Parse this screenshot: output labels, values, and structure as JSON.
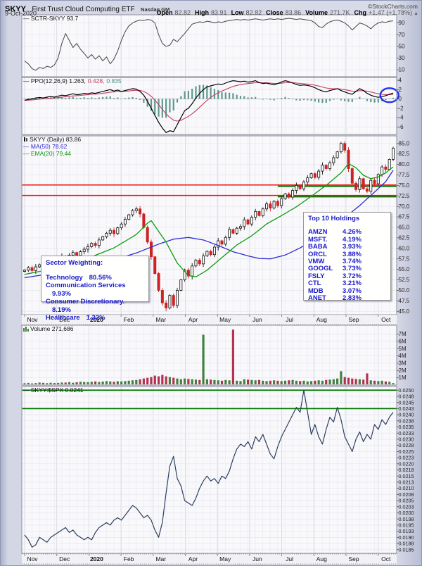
{
  "header": {
    "symbol": "SKYY",
    "name": "First Trust Cloud Computing ETF",
    "exchange": "Nasdaq GM",
    "copyright": "©StockCharts.com",
    "date": "9-Oct-2020",
    "quote": [
      {
        "label": "Open",
        "value": "82.82"
      },
      {
        "label": "High",
        "value": "83.91"
      },
      {
        "label": "Low",
        "value": "82.82"
      },
      {
        "label": "Close",
        "value": "83.86"
      },
      {
        "label": "Volume",
        "value": "271.7K"
      },
      {
        "label": "Chg",
        "value": "+1.47 (+1.78%)"
      }
    ],
    "chg_arrow": "▲"
  },
  "legends": {
    "sctr": "— SCTR-SKYY 93.7",
    "ppo_main": "— PPO(12,26,9) 1.263,",
    "ppo_signal": "0.428,",
    "ppo_hist": "0.835",
    "price_main": "SKYY (Daily) 83.86",
    "ma50": "— MA(50) 78.62",
    "ema20": "— EMA(20) 79.44",
    "volume": "Volume 271,686",
    "ratio": "— SKYY:$SPX 0.0241"
  },
  "annotations": {
    "sector_title": "Sector Weighting:",
    "sectors": [
      {
        "name": "Technology",
        "pct": "80.56%"
      },
      {
        "name": "Communication Services",
        "pct": "9.93%"
      },
      {
        "name": "Consumer Discretionary.",
        "pct": "8.19%"
      },
      {
        "name": "Healthcare",
        "pct": "1.32%"
      }
    ],
    "holdings_title": "Top 10 Holdings",
    "holdings": [
      {
        "ticker": "AMZN",
        "pct": "4.26%"
      },
      {
        "ticker": "MSFT.",
        "pct": "4.19%"
      },
      {
        "ticker": "BABA",
        "pct": "3.93%"
      },
      {
        "ticker": "ORCL",
        "pct": "3.88%"
      },
      {
        "ticker": "VMW",
        "pct": "3.74%"
      },
      {
        "ticker": "GOOGL",
        "pct": "3.73%"
      },
      {
        "ticker": "FSLY",
        "pct": "3.72%"
      },
      {
        "ticker": "CTL",
        "pct": "3.21%"
      },
      {
        "ticker": "MDB",
        "pct": "3.07%"
      },
      {
        "ticker": "ANET",
        "pct": "2.83%"
      }
    ]
  },
  "colors": {
    "candle_up": "#111111",
    "candle_down": "#cc2222",
    "ma50": "#2b2bd4",
    "ema20": "#0d9a0d",
    "ppo_line": "#000000",
    "ppo_signal": "#c23b5a",
    "ppo_hist": "#4a8f81",
    "volume_up": "#43803f",
    "volume_down": "#b23350",
    "ratio_line": "#2c3e5c",
    "sctr_line": "#444444",
    "support_red": "#ee1111",
    "support_green": "#007700",
    "annotation_blue": "#1a1acc",
    "circle_blue": "#2233ee"
  },
  "axes": {
    "months": [
      "Nov",
      "Dec",
      "2020",
      "Feb",
      "Mar",
      "Apr",
      "May",
      "Jun",
      "Jul",
      "Aug",
      "Sep",
      "Oct"
    ],
    "bold_month": "2020"
  },
  "chart_data": [
    {
      "id": "sctr",
      "type": "line",
      "title": "SCTR-SKYY",
      "last": 93.7,
      "ylim": [
        -2,
        104
      ],
      "yticks": [
        90,
        70,
        50,
        30,
        10
      ],
      "values": [
        25,
        20,
        12,
        9,
        14,
        12,
        16,
        14,
        18,
        30,
        55,
        72,
        60,
        48,
        55,
        45,
        38,
        30,
        36,
        28,
        34,
        25,
        32,
        20,
        28,
        42,
        60,
        75,
        85,
        90,
        93,
        95,
        94,
        96,
        95,
        90,
        70,
        55,
        50,
        52,
        62,
        58,
        65,
        72,
        80,
        88,
        90,
        92,
        91,
        93,
        92,
        90,
        92,
        91,
        93,
        94,
        95,
        96,
        95,
        96,
        95,
        96,
        97,
        96,
        95,
        96,
        97,
        96,
        97,
        96,
        97,
        98,
        97,
        96,
        97,
        96,
        95,
        94,
        90,
        84,
        82,
        88,
        92,
        94,
        95,
        93,
        90,
        85,
        78,
        84,
        90,
        88,
        85,
        80,
        86,
        90,
        92,
        91,
        93,
        93.7
      ]
    },
    {
      "id": "ppo",
      "type": "line+histogram",
      "params": "12,26,9",
      "last_ppo": 1.263,
      "last_signal": 0.428,
      "last_hist": 0.835,
      "ylim": [
        -7.6,
        4.6
      ],
      "yticks": [
        4,
        2,
        0,
        -2,
        -4,
        -6
      ],
      "note": "signal = EMA9 of ppo; histogram = ppo - signal",
      "ppo_values": [
        -0.3,
        -0.1,
        0.0,
        0.2,
        0.3,
        0.2,
        0.4,
        0.5,
        0.4,
        0.6,
        0.8,
        0.7,
        0.9,
        1.1,
        0.9,
        1.0,
        1.2,
        1.1,
        1.3,
        1.2,
        1.4,
        1.6,
        1.8,
        2.0,
        1.7,
        1.9,
        1.6,
        1.8,
        2.0,
        2.2,
        2.1,
        1.6,
        0.8,
        -0.5,
        -2.0,
        -3.5,
        -5.0,
        -6.2,
        -7.2,
        -6.8,
        -7.0,
        -5.5,
        -4.0,
        -2.5,
        -2.0,
        -1.0,
        0.2,
        1.2,
        2.0,
        2.6,
        2.8,
        3.0,
        3.2,
        3.1,
        3.4,
        3.7,
        3.9,
        3.8,
        3.7,
        3.8,
        3.6,
        3.7,
        3.9,
        3.5,
        3.3,
        3.4,
        3.2,
        3.0,
        3.3,
        3.6,
        3.9,
        3.7,
        3.4,
        3.1,
        2.9,
        3.0,
        2.9,
        2.7,
        2.4,
        2.0,
        1.7,
        1.5,
        1.8,
        2.0,
        2.2,
        1.8,
        1.5,
        1.2,
        1.0,
        1.6,
        2.2,
        1.8,
        1.2,
        0.8,
        0.5,
        0.35,
        0.5,
        0.7,
        1.0,
        1.26
      ],
      "circle_annotation": {
        "cx_index": 98,
        "cy_value": 0.8
      }
    },
    {
      "id": "price",
      "type": "candlestick",
      "symbol": "SKYY (Daily)",
      "last": 83.86,
      "ylim": [
        44.2,
        86.8
      ],
      "yticks": [
        85.0,
        82.5,
        80.0,
        77.5,
        75.0,
        72.5,
        70.0,
        67.5,
        65.0,
        62.5,
        60.0,
        57.5,
        55.0,
        52.5,
        50.0,
        47.5,
        45.0
      ],
      "closes": [
        54.8,
        55.4,
        54.7,
        55.6,
        56.1,
        55.7,
        56.4,
        57.0,
        56.6,
        57.4,
        58.1,
        57.7,
        58.4,
        59.0,
        58.3,
        59.2,
        59.8,
        60.4,
        61.2,
        60.7,
        62.0,
        62.8,
        63.6,
        64.3,
        63.5,
        64.9,
        65.8,
        66.9,
        68.0,
        69.0,
        69.4,
        68.2,
        65.0,
        61.5,
        58.0,
        54.0,
        50.0,
        47.0,
        45.8,
        48.8,
        46.4,
        50.0,
        52.5,
        54.8,
        53.4,
        55.8,
        57.2,
        56.3,
        58.2,
        59.3,
        58.5,
        60.3,
        61.8,
        61.0,
        62.6,
        64.5,
        63.6,
        64.8,
        65.2,
        66.8,
        65.8,
        67.4,
        68.8,
        67.8,
        69.4,
        70.6,
        69.6,
        71.2,
        70.2,
        71.8,
        73.0,
        72.2,
        73.8,
        75.0,
        74.2,
        75.8,
        76.8,
        77.8,
        76.9,
        78.4,
        79.8,
        79.0,
        80.4,
        81.6,
        83.0,
        85.0,
        83.4,
        79.0,
        75.5,
        74.0,
        76.6,
        74.2,
        73.6,
        76.2,
        75.4,
        77.6,
        79.4,
        78.8,
        81.2,
        83.86
      ],
      "ma50": {
        "label": "MA(50)",
        "last": 78.62,
        "anchors": [
          [
            0,
            53.0
          ],
          [
            10,
            54.4
          ],
          [
            20,
            56.2
          ],
          [
            30,
            58.9
          ],
          [
            36,
            61.0
          ],
          [
            40,
            62.2
          ],
          [
            44,
            62.6
          ],
          [
            48,
            62.0
          ],
          [
            52,
            60.7
          ],
          [
            56,
            59.2
          ],
          [
            60,
            58.2
          ],
          [
            63,
            57.6
          ],
          [
            66,
            57.5
          ],
          [
            70,
            58.4
          ],
          [
            74,
            60.1
          ],
          [
            78,
            62.3
          ],
          [
            82,
            64.7
          ],
          [
            86,
            67.3
          ],
          [
            90,
            70.2
          ],
          [
            94,
            73.4
          ],
          [
            97,
            75.9
          ],
          [
            99,
            78.6
          ]
        ]
      },
      "ema20": {
        "label": "EMA(20)",
        "last": 79.44,
        "anchors": [
          [
            0,
            53.8
          ],
          [
            8,
            55.2
          ],
          [
            16,
            57.3
          ],
          [
            24,
            60.1
          ],
          [
            30,
            63.3
          ],
          [
            33,
            66.0
          ],
          [
            34,
            66.6
          ],
          [
            38,
            61.5
          ],
          [
            41,
            56.5
          ],
          [
            44,
            53.5
          ],
          [
            46,
            53.2
          ],
          [
            49,
            54.8
          ],
          [
            53,
            57.8
          ],
          [
            57,
            60.8
          ],
          [
            61,
            63.0
          ],
          [
            65,
            65.8
          ],
          [
            69,
            67.8
          ],
          [
            73,
            69.9
          ],
          [
            77,
            72.4
          ],
          [
            81,
            75.0
          ],
          [
            85,
            78.0
          ],
          [
            87,
            80.2
          ],
          [
            89,
            79.2
          ],
          [
            91,
            77.4
          ],
          [
            93,
            76.6
          ],
          [
            95,
            77.0
          ],
          [
            97,
            78.0
          ],
          [
            99,
            79.4
          ]
        ]
      },
      "hlines_red": [
        75.1,
        72.6
      ],
      "hlines_green": [
        74.8,
        72.3
      ],
      "hlines_green_start_index": 68
    },
    {
      "id": "volume",
      "type": "bar",
      "last_label": "271,686",
      "ylim": [
        0,
        8.2
      ],
      "yticks": [
        7,
        6,
        5,
        4,
        3,
        2,
        1
      ],
      "ytick_labels": [
        "7M",
        "6M",
        "5M",
        "4M",
        "3M",
        "2M",
        "1M"
      ],
      "values_millions": [
        0.25,
        0.3,
        0.22,
        0.28,
        0.35,
        0.3,
        0.26,
        0.32,
        0.28,
        0.3,
        0.35,
        0.35,
        0.4,
        0.32,
        0.38,
        0.45,
        0.42,
        0.4,
        0.45,
        0.5,
        0.42,
        0.48,
        0.55,
        0.5,
        0.45,
        0.52,
        0.5,
        0.55,
        0.6,
        0.65,
        0.7,
        0.8,
        0.9,
        1.0,
        1.1,
        1.3,
        1.2,
        1.4,
        1.2,
        1.1,
        1.0,
        0.9,
        0.8,
        0.9,
        0.85,
        0.8,
        0.75,
        0.7,
        6.9,
        0.8,
        0.75,
        0.7,
        0.65,
        0.6,
        0.7,
        0.65,
        7.6,
        0.6,
        0.55,
        0.8,
        0.75,
        0.7,
        0.65,
        0.7,
        0.6,
        0.55,
        0.6,
        0.65,
        0.6,
        0.55,
        0.6,
        0.65,
        0.7,
        0.6,
        0.55,
        0.6,
        0.5,
        0.55,
        0.6,
        0.65,
        0.6,
        0.7,
        0.75,
        0.8,
        0.9,
        1.9,
        1.1,
        1.0,
        0.9,
        0.85,
        0.8,
        0.75,
        1.6,
        0.65,
        0.6,
        0.55,
        0.6,
        0.5,
        0.45,
        0.27
      ]
    },
    {
      "id": "ratio",
      "type": "line",
      "title": "SKYY:$SPX",
      "last": 0.0241,
      "ylim": [
        0.01835,
        0.02515
      ],
      "ytick_labels": [
        "0.0250",
        "0.0248",
        "0.0245",
        "0.0243",
        "0.0240",
        "0.0238",
        "0.0235",
        "0.0233",
        "0.0230",
        "0.0228",
        "0.0225",
        "0.0223",
        "0.0220",
        "0.0218",
        "0.0215",
        "0.0213",
        "0.0210",
        "0.0208",
        "0.0205",
        "0.0203",
        "0.0200",
        "0.0198",
        "0.0195",
        "0.0193",
        "0.0190",
        "0.0188",
        "0.0185"
      ],
      "ytick_start": 0.025,
      "ytick_step": 0.00025,
      "hlines_green": [
        0.025,
        0.02425
      ],
      "values": [
        0.0191,
        0.0189,
        0.0186,
        0.0187,
        0.019,
        0.0189,
        0.0188,
        0.019,
        0.0191,
        0.0192,
        0.0193,
        0.0194,
        0.0192,
        0.0193,
        0.0191,
        0.019,
        0.0189,
        0.019,
        0.0189,
        0.0192,
        0.0194,
        0.0195,
        0.0196,
        0.0195,
        0.0197,
        0.0198,
        0.0197,
        0.0199,
        0.0201,
        0.0203,
        0.0202,
        0.02,
        0.0198,
        0.0199,
        0.0197,
        0.0193,
        0.019,
        0.0196,
        0.0208,
        0.0219,
        0.0223,
        0.0214,
        0.0211,
        0.0205,
        0.0204,
        0.0203,
        0.0206,
        0.021,
        0.0213,
        0.0215,
        0.0213,
        0.0214,
        0.0212,
        0.0215,
        0.0214,
        0.0217,
        0.0222,
        0.0226,
        0.0228,
        0.0227,
        0.0229,
        0.0226,
        0.0231,
        0.0229,
        0.0232,
        0.0228,
        0.0224,
        0.0222,
        0.0227,
        0.0231,
        0.0234,
        0.0237,
        0.024,
        0.0243,
        0.0241,
        0.025,
        0.0241,
        0.0232,
        0.0236,
        0.0231,
        0.0228,
        0.0234,
        0.0239,
        0.0237,
        0.0243,
        0.0238,
        0.0231,
        0.0228,
        0.0225,
        0.023,
        0.0233,
        0.0229,
        0.0232,
        0.023,
        0.0236,
        0.0234,
        0.0238,
        0.0236,
        0.0239,
        0.0241
      ]
    }
  ]
}
